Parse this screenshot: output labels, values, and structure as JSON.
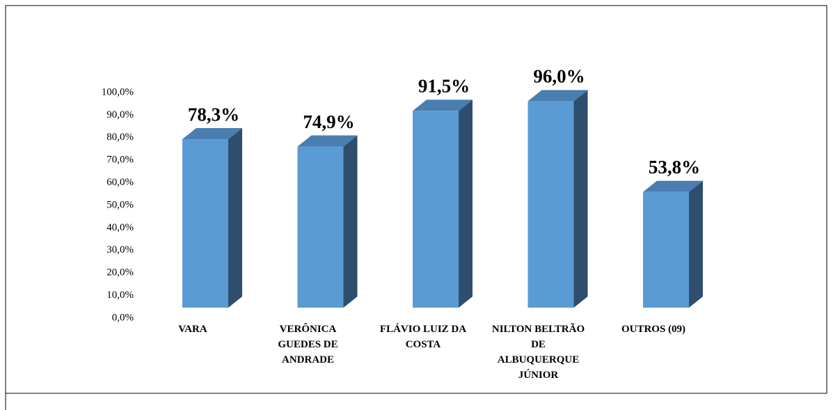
{
  "chart_data": {
    "type": "bar3d",
    "categories": [
      "VARA",
      "VERÔNICA GUEDES DE ANDRADE",
      "FLÁVIO LUIZ DA COSTA",
      "NILTON BELTRÃO DE ALBUQUERQUE JÚNIOR",
      "OUTROS (09)"
    ],
    "values": [
      78.3,
      74.9,
      91.5,
      96.0,
      53.8
    ],
    "value_labels": [
      "78,3%",
      "74,9%",
      "91,5%",
      "96,0%",
      "53,8%"
    ],
    "color": "#5b9bd5",
    "ylim": [
      0,
      100
    ],
    "yticks": [
      {
        "value": 0,
        "label": "0,0%"
      },
      {
        "value": 10,
        "label": "10,0%"
      },
      {
        "value": 20,
        "label": "20,0%"
      },
      {
        "value": 30,
        "label": "30,0%"
      },
      {
        "value": 40,
        "label": "40,0%"
      },
      {
        "value": 50,
        "label": "50,0%"
      },
      {
        "value": 60,
        "label": "60,0%"
      },
      {
        "value": 70,
        "label": "70,0%"
      },
      {
        "value": 80,
        "label": "80,0%"
      },
      {
        "value": 90,
        "label": "90,0%"
      },
      {
        "value": 100,
        "label": "100,0%"
      }
    ]
  }
}
